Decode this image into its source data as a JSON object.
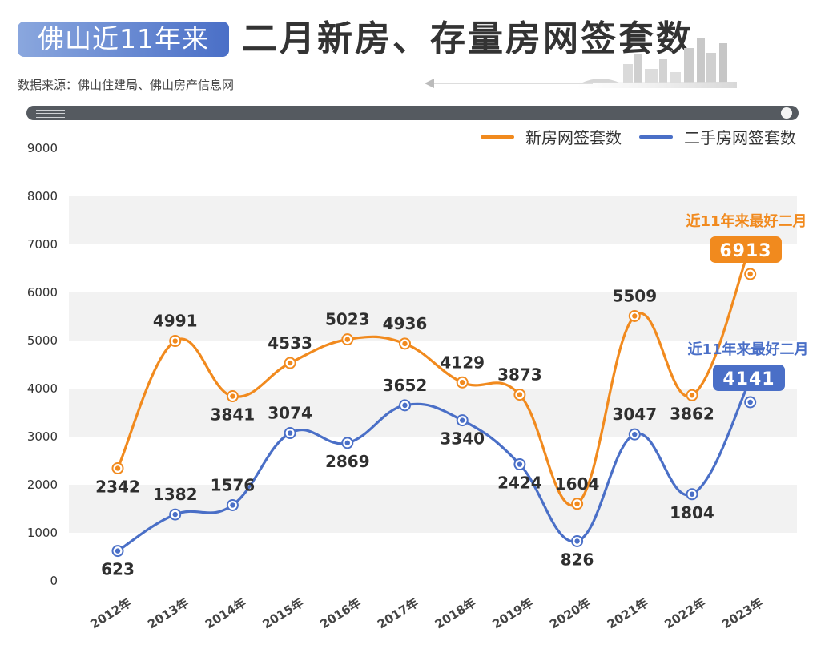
{
  "header": {
    "badge": "佛山近11年来",
    "title": "二月新房、存量房网签套数",
    "source": "数据来源：佛山住建局、佛山房产信息网"
  },
  "colors": {
    "orange": "#f18a1e",
    "blue": "#4a6fc7",
    "band": "#f2f2f2"
  },
  "chart_data": {
    "type": "line",
    "categories": [
      "2012年",
      "2013年",
      "2014年",
      "2015年",
      "2016年",
      "2017年",
      "2018年",
      "2019年",
      "2020年",
      "2021年",
      "2022年",
      "2023年"
    ],
    "series": [
      {
        "name": "新房网签套数",
        "color": "#f18a1e",
        "values": [
          2342,
          4991,
          3841,
          4533,
          5023,
          4936,
          4129,
          3873,
          1604,
          5509,
          3862,
          6913
        ]
      },
      {
        "name": "二手房网签套数",
        "color": "#4a6fc7",
        "values": [
          623,
          1382,
          1576,
          3074,
          2869,
          3652,
          3340,
          2424,
          826,
          3047,
          1804,
          4141
        ]
      }
    ],
    "yticks": [
      0,
      1000,
      2000,
      3000,
      4000,
      5000,
      6000,
      7000,
      8000,
      9000
    ],
    "ylim": [
      0,
      9000
    ],
    "grid": "alternating bands",
    "legend": "top-right",
    "annotations": [
      {
        "series": 0,
        "text": "近11年来最好二月",
        "value": "6913"
      },
      {
        "series": 1,
        "text": "近11年来最好二月",
        "value": "4141"
      }
    ]
  }
}
